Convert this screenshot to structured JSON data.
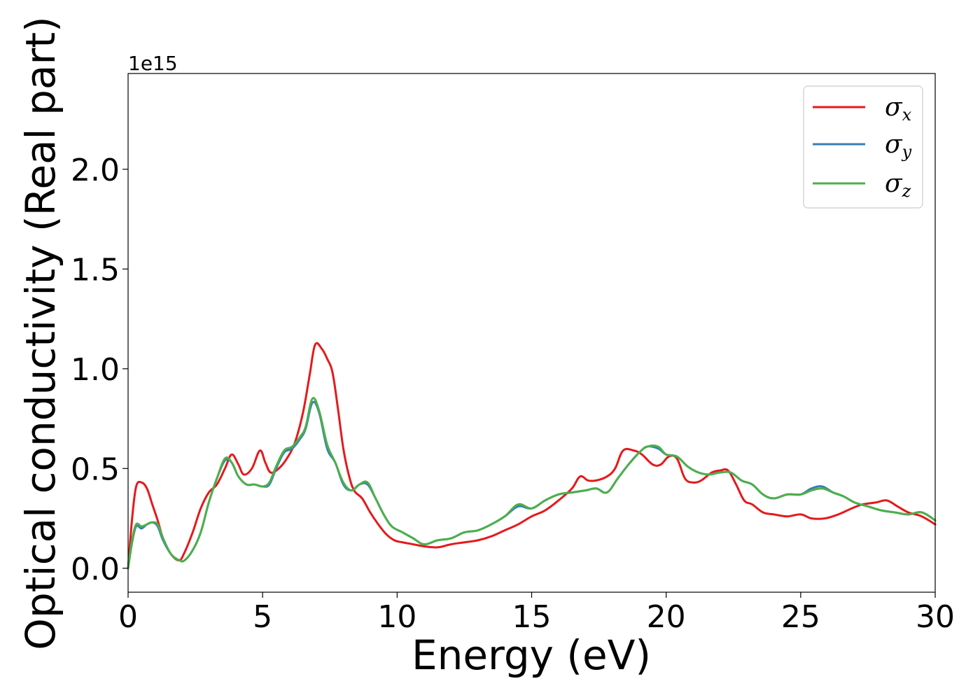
{
  "chart_data": {
    "type": "line",
    "xlabel": "Energy (eV)",
    "ylabel": "Optical conductivity (Real part)",
    "y_offset_text": "1e15",
    "xlim": [
      0,
      30
    ],
    "ylim": [
      -0.12,
      2.48
    ],
    "xticks": [
      0,
      5,
      10,
      15,
      20,
      25,
      30
    ],
    "xtick_labels": [
      "0",
      "5",
      "10",
      "15",
      "20",
      "25",
      "30"
    ],
    "yticks": [
      0.0,
      0.5,
      1.0,
      1.5,
      2.0
    ],
    "ytick_labels": [
      "0.0",
      "0.5",
      "1.0",
      "1.5",
      "2.0"
    ],
    "grid": false,
    "legend_position": "top-right",
    "series": [
      {
        "name": "σx",
        "legend_symbol": "σ",
        "legend_sub": "x",
        "color": "#e41a1c",
        "x": [
          0,
          0.15,
          0.3,
          0.5,
          0.7,
          0.9,
          1.1,
          1.3,
          1.6,
          1.9,
          2.1,
          2.4,
          2.7,
          3.0,
          3.3,
          3.6,
          3.85,
          4.1,
          4.3,
          4.6,
          4.9,
          5.1,
          5.3,
          5.6,
          5.9,
          6.2,
          6.5,
          6.75,
          6.95,
          7.2,
          7.4,
          7.6,
          7.8,
          8.0,
          8.2,
          8.4,
          8.7,
          9.0,
          9.3,
          9.6,
          9.9,
          10.2,
          10.6,
          11.0,
          11.5,
          12.0,
          12.5,
          13.0,
          13.5,
          14.0,
          14.5,
          15.0,
          15.5,
          16.0,
          16.5,
          16.8,
          17.1,
          17.4,
          17.8,
          18.1,
          18.4,
          18.8,
          19.1,
          19.5,
          19.8,
          20.1,
          20.4,
          20.7,
          21.0,
          21.3,
          21.7,
          22.0,
          22.3,
          22.6,
          22.9,
          23.2,
          23.6,
          24.0,
          24.5,
          25.0,
          25.4,
          25.9,
          26.4,
          26.9,
          27.3,
          27.8,
          28.2,
          28.6,
          29.0,
          29.5,
          30.0
        ],
        "values": [
          0.0,
          0.25,
          0.41,
          0.43,
          0.4,
          0.32,
          0.24,
          0.15,
          0.07,
          0.04,
          0.08,
          0.18,
          0.3,
          0.38,
          0.42,
          0.5,
          0.57,
          0.52,
          0.47,
          0.5,
          0.59,
          0.53,
          0.48,
          0.5,
          0.55,
          0.63,
          0.78,
          0.97,
          1.12,
          1.1,
          1.05,
          0.98,
          0.8,
          0.6,
          0.47,
          0.39,
          0.35,
          0.28,
          0.22,
          0.17,
          0.14,
          0.13,
          0.12,
          0.11,
          0.105,
          0.12,
          0.13,
          0.14,
          0.16,
          0.19,
          0.22,
          0.26,
          0.29,
          0.34,
          0.4,
          0.46,
          0.44,
          0.44,
          0.46,
          0.5,
          0.59,
          0.59,
          0.57,
          0.52,
          0.52,
          0.56,
          0.55,
          0.45,
          0.43,
          0.44,
          0.48,
          0.49,
          0.49,
          0.42,
          0.34,
          0.32,
          0.28,
          0.27,
          0.26,
          0.27,
          0.25,
          0.25,
          0.27,
          0.3,
          0.32,
          0.33,
          0.34,
          0.31,
          0.28,
          0.26,
          0.22
        ]
      },
      {
        "name": "σy",
        "legend_symbol": "σ",
        "legend_sub": "y",
        "color": "#377eb8",
        "x": [
          0,
          0.15,
          0.3,
          0.5,
          0.7,
          0.9,
          1.1,
          1.3,
          1.6,
          1.9,
          2.1,
          2.4,
          2.7,
          3.0,
          3.3,
          3.6,
          3.85,
          4.1,
          4.4,
          4.7,
          5.0,
          5.25,
          5.5,
          5.8,
          6.1,
          6.4,
          6.6,
          6.85,
          7.1,
          7.4,
          7.7,
          8.0,
          8.3,
          8.6,
          8.9,
          9.2,
          9.5,
          9.8,
          10.2,
          10.6,
          11.0,
          11.5,
          12.0,
          12.5,
          13.0,
          13.5,
          14.0,
          14.5,
          15.0,
          15.5,
          16.0,
          16.5,
          17.0,
          17.4,
          17.8,
          18.2,
          18.6,
          19.0,
          19.3,
          19.7,
          20.0,
          20.4,
          20.8,
          21.2,
          21.6,
          22.0,
          22.4,
          22.8,
          23.2,
          23.6,
          24.0,
          24.5,
          25.0,
          25.4,
          25.8,
          26.2,
          26.6,
          27.0,
          27.5,
          28.0,
          28.5,
          29.0,
          29.5,
          30.0
        ],
        "values": [
          0.0,
          0.13,
          0.21,
          0.2,
          0.22,
          0.23,
          0.21,
          0.14,
          0.07,
          0.04,
          0.04,
          0.09,
          0.18,
          0.33,
          0.45,
          0.54,
          0.53,
          0.46,
          0.42,
          0.42,
          0.41,
          0.42,
          0.5,
          0.58,
          0.6,
          0.65,
          0.7,
          0.83,
          0.78,
          0.6,
          0.53,
          0.42,
          0.39,
          0.42,
          0.42,
          0.35,
          0.27,
          0.21,
          0.18,
          0.15,
          0.12,
          0.14,
          0.15,
          0.18,
          0.19,
          0.22,
          0.26,
          0.31,
          0.3,
          0.34,
          0.37,
          0.38,
          0.39,
          0.4,
          0.38,
          0.45,
          0.52,
          0.58,
          0.61,
          0.6,
          0.57,
          0.56,
          0.51,
          0.48,
          0.47,
          0.48,
          0.48,
          0.44,
          0.42,
          0.37,
          0.35,
          0.37,
          0.37,
          0.4,
          0.41,
          0.38,
          0.36,
          0.33,
          0.31,
          0.29,
          0.28,
          0.27,
          0.28,
          0.24
        ]
      },
      {
        "name": "σz",
        "legend_symbol": "σ",
        "legend_sub": "z",
        "color": "#4daf4a",
        "x": [
          0,
          0.15,
          0.3,
          0.5,
          0.7,
          0.9,
          1.1,
          1.3,
          1.6,
          1.9,
          2.1,
          2.4,
          2.7,
          3.0,
          3.3,
          3.6,
          3.85,
          4.1,
          4.4,
          4.7,
          5.0,
          5.25,
          5.5,
          5.8,
          6.1,
          6.4,
          6.6,
          6.85,
          7.1,
          7.4,
          7.7,
          8.0,
          8.3,
          8.6,
          8.9,
          9.2,
          9.5,
          9.8,
          10.2,
          10.6,
          11.0,
          11.5,
          12.0,
          12.5,
          13.0,
          13.5,
          14.0,
          14.5,
          15.0,
          15.5,
          16.0,
          16.5,
          17.0,
          17.4,
          17.8,
          18.2,
          18.6,
          19.0,
          19.3,
          19.7,
          20.0,
          20.4,
          20.8,
          21.2,
          21.6,
          22.0,
          22.4,
          22.8,
          23.2,
          23.6,
          24.0,
          24.5,
          25.0,
          25.4,
          25.8,
          26.2,
          26.6,
          27.0,
          27.5,
          28.0,
          28.5,
          29.0,
          29.5,
          30.0
        ],
        "values": [
          0.0,
          0.14,
          0.22,
          0.21,
          0.22,
          0.23,
          0.22,
          0.15,
          0.07,
          0.04,
          0.04,
          0.09,
          0.18,
          0.33,
          0.45,
          0.55,
          0.53,
          0.46,
          0.42,
          0.42,
          0.41,
          0.43,
          0.51,
          0.59,
          0.61,
          0.66,
          0.71,
          0.85,
          0.79,
          0.62,
          0.53,
          0.43,
          0.39,
          0.42,
          0.43,
          0.35,
          0.27,
          0.21,
          0.18,
          0.15,
          0.12,
          0.14,
          0.15,
          0.18,
          0.19,
          0.22,
          0.26,
          0.32,
          0.3,
          0.34,
          0.37,
          0.38,
          0.39,
          0.4,
          0.38,
          0.45,
          0.52,
          0.58,
          0.61,
          0.61,
          0.57,
          0.56,
          0.51,
          0.48,
          0.47,
          0.48,
          0.48,
          0.44,
          0.42,
          0.37,
          0.35,
          0.37,
          0.37,
          0.39,
          0.4,
          0.38,
          0.36,
          0.33,
          0.31,
          0.29,
          0.28,
          0.27,
          0.28,
          0.24
        ]
      }
    ]
  }
}
